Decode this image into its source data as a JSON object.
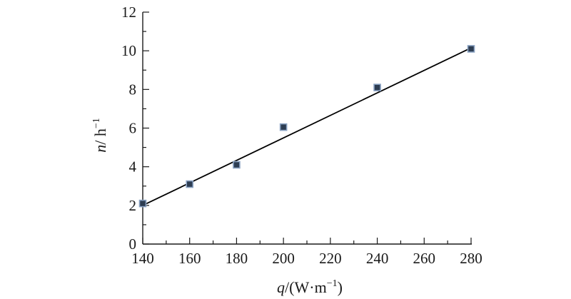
{
  "chart_data": {
    "type": "scatter",
    "title": "",
    "xlabel": {
      "var": "q",
      "unit": "/(W·m",
      "sup": "−1",
      "close": ")"
    },
    "ylabel": {
      "var": "n",
      "unit": "/ h",
      "sup": "−1"
    },
    "xlim": [
      140,
      280
    ],
    "ylim": [
      0,
      12
    ],
    "xticks": [
      140,
      160,
      180,
      200,
      220,
      240,
      260,
      280
    ],
    "yticks": [
      0,
      2,
      4,
      6,
      8,
      10,
      12
    ],
    "grid": false,
    "legend": "none",
    "series": [
      {
        "points": [
          {
            "x": 140,
            "y": 2.1
          },
          {
            "x": 160,
            "y": 3.1
          },
          {
            "x": 180,
            "y": 4.1
          },
          {
            "x": 200,
            "y": 6.05
          },
          {
            "x": 240,
            "y": 8.1
          },
          {
            "x": 280,
            "y": 10.1
          }
        ],
        "marker_fill": "#2d3d52",
        "marker_edge": "#8aa2c2"
      }
    ],
    "fit_line": {
      "x": [
        140,
        280
      ],
      "y": [
        2.0,
        10.15
      ],
      "color": "#000000"
    }
  }
}
